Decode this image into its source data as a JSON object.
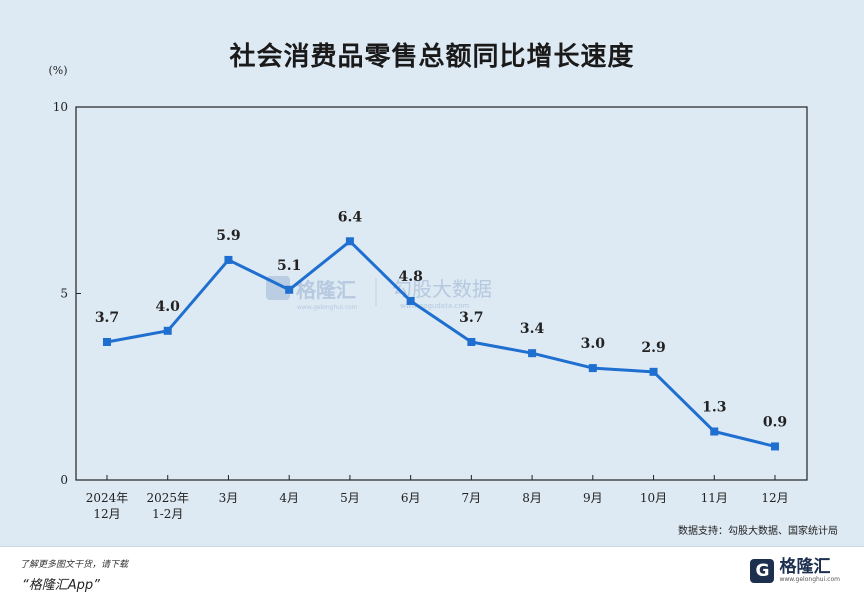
{
  "title": "社会消费品零售总额同比增长速度",
  "source": "数据支持：勾股大数据、国家统计局",
  "watermark": {
    "brand_cn": "格隆汇",
    "brand_url": "www.gelonghui.com",
    "partner_cn": "勾股大数据",
    "partner_url": "www.gogudata.com"
  },
  "footer": {
    "promo_line1": "了解更多图文干货，请下载",
    "promo_line2": "“格隆汇App”",
    "logo_name": "格隆汇",
    "logo_url": "www.gelonghui.com",
    "logo_glyph": "G"
  },
  "chart_data": {
    "type": "line",
    "ylabel": "(%)",
    "ylim": [
      0,
      10
    ],
    "yticks": [
      "0",
      "5",
      "10"
    ],
    "categories": [
      [
        "2024年",
        "12月"
      ],
      [
        "2025年",
        "1-2月"
      ],
      [
        "3月"
      ],
      [
        "4月"
      ],
      [
        "5月"
      ],
      [
        "6月"
      ],
      [
        "7月"
      ],
      [
        "8月"
      ],
      [
        "9月"
      ],
      [
        "10月"
      ],
      [
        "11月"
      ],
      [
        "12月"
      ]
    ],
    "values": [
      3.7,
      4.0,
      5.9,
      5.1,
      6.4,
      4.8,
      3.7,
      3.4,
      3.0,
      2.9,
      1.3,
      0.9
    ],
    "value_labels": [
      "3.7",
      "4.0",
      "5.9",
      "5.1",
      "6.4",
      "4.8",
      "3.7",
      "3.4",
      "3.0",
      "2.9",
      "1.3",
      "0.9"
    ],
    "line_color": "#1f6fd1",
    "grid": false
  }
}
